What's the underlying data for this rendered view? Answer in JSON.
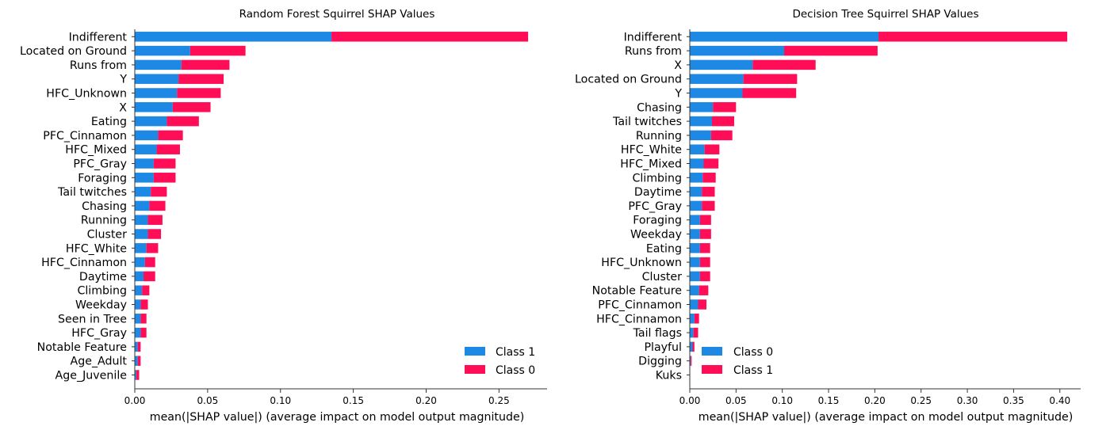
{
  "colors": {
    "blue": "#1E88E5",
    "red": "#FF0D57"
  },
  "chart_data": [
    {
      "type": "bar",
      "orientation": "horizontal",
      "stacked": true,
      "title": "Random Forest Squirrel SHAP Values",
      "xlabel": "mean(|SHAP value|) (average impact on model output magnitude)",
      "xlim": [
        0,
        0.283
      ],
      "xticks": [
        "0.00",
        "0.05",
        "0.10",
        "0.15",
        "0.20",
        "0.25"
      ],
      "grid": false,
      "legend_position": "lower-right",
      "categories": [
        "Indifferent",
        "Located on Ground",
        "Runs from",
        "Y",
        "HFC_Unknown",
        "X",
        "Eating",
        "PFC_Cinnamon",
        "HFC_Mixed",
        "PFC_Gray",
        "Foraging",
        "Tail twitches",
        "Chasing",
        "Running",
        "Cluster",
        "HFC_White",
        "HFC_Cinnamon",
        "Daytime",
        "Climbing",
        "Weekday",
        "Seen in Tree",
        "HFC_Gray",
        "Notable Feature",
        "Age_Adult",
        "Age_Juvenile"
      ],
      "series": [
        {
          "name": "Class 1",
          "color": "#1E88E5",
          "values": [
            0.135,
            0.038,
            0.032,
            0.03,
            0.029,
            0.026,
            0.022,
            0.016,
            0.015,
            0.013,
            0.013,
            0.011,
            0.01,
            0.009,
            0.009,
            0.008,
            0.007,
            0.006,
            0.005,
            0.004,
            0.004,
            0.004,
            0.002,
            0.002,
            0.001
          ]
        },
        {
          "name": "Class 0",
          "color": "#FF0D57",
          "values": [
            0.135,
            0.038,
            0.033,
            0.031,
            0.03,
            0.026,
            0.022,
            0.017,
            0.016,
            0.015,
            0.015,
            0.011,
            0.011,
            0.01,
            0.009,
            0.008,
            0.007,
            0.008,
            0.005,
            0.005,
            0.004,
            0.004,
            0.002,
            0.002,
            0.002
          ]
        }
      ],
      "legend": [
        "Class 1",
        "Class 0"
      ]
    },
    {
      "type": "bar",
      "orientation": "horizontal",
      "stacked": true,
      "title": "Decision Tree Squirrel SHAP Values",
      "xlabel": "mean(|SHAP value|) (average impact on model output magnitude)",
      "xlim": [
        0,
        0.4225
      ],
      "xticks": [
        "0.00",
        "0.05",
        "0.10",
        "0.15",
        "0.20",
        "0.25",
        "0.30",
        "0.35",
        "0.40"
      ],
      "grid": false,
      "legend_position": "lower-left",
      "categories": [
        "Indifferent",
        "Runs from",
        "X",
        "Located on Ground",
        "Y",
        "Chasing",
        "Tail twitches",
        "Running",
        "HFC_White",
        "HFC_Mixed",
        "Climbing",
        "Daytime",
        "PFC_Gray",
        "Foraging",
        "Weekday",
        "Eating",
        "HFC_Unknown",
        "Cluster",
        "Notable Feature",
        "PFC_Cinnamon",
        "HFC_Cinnamon",
        "Tail flags",
        "Playful",
        "Digging",
        "Kuks"
      ],
      "series": [
        {
          "name": "Class 0",
          "color": "#1E88E5",
          "values": [
            0.204,
            0.102,
            0.068,
            0.058,
            0.057,
            0.025,
            0.024,
            0.023,
            0.016,
            0.015,
            0.014,
            0.013,
            0.013,
            0.011,
            0.011,
            0.011,
            0.011,
            0.011,
            0.01,
            0.009,
            0.005,
            0.004,
            0.003,
            0.001,
            0.0
          ]
        },
        {
          "name": "Class 1",
          "color": "#FF0D57",
          "values": [
            0.204,
            0.101,
            0.068,
            0.058,
            0.058,
            0.025,
            0.024,
            0.023,
            0.016,
            0.016,
            0.014,
            0.014,
            0.014,
            0.012,
            0.012,
            0.011,
            0.011,
            0.011,
            0.01,
            0.009,
            0.005,
            0.005,
            0.002,
            0.001,
            0.0
          ]
        }
      ],
      "legend": [
        "Class 0",
        "Class 1"
      ]
    }
  ]
}
